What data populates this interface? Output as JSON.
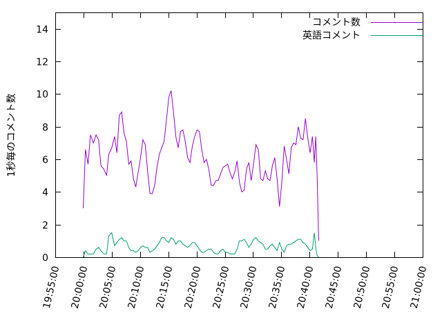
{
  "chart_data": {
    "type": "line",
    "title": "",
    "xlabel": "",
    "ylabel": "1秒毎のコメント数",
    "x_axis": "time",
    "x_ticks": [
      "19:55:00",
      "20:00:00",
      "20:05:00",
      "20:10:00",
      "20:15:00",
      "20:20:00",
      "20:25:00",
      "20:30:00",
      "20:35:00",
      "20:40:00",
      "20:45:00",
      "20:50:00",
      "20:55:00",
      "21:00:00"
    ],
    "y_ticks": [
      "0",
      "2",
      "4",
      "6",
      "8",
      "10",
      "12",
      "14"
    ],
    "xlim": [
      "19:55:00",
      "21:00:00"
    ],
    "ylim": [
      0,
      15
    ],
    "grid": false,
    "legend": "top-right",
    "series": [
      {
        "name": "コメント数",
        "color": "#9400d3",
        "points": [
          [
            "19:59:57",
            3.0
          ],
          [
            "20:00:20",
            6.6
          ],
          [
            "20:00:48",
            5.7
          ],
          [
            "20:01:14",
            7.5
          ],
          [
            "20:01:45",
            7.0
          ],
          [
            "20:02:13",
            7.5
          ],
          [
            "20:02:40",
            7.2
          ],
          [
            "20:03:05",
            5.6
          ],
          [
            "20:03:35",
            5.4
          ],
          [
            "20:04:05",
            5.0
          ],
          [
            "20:04:28",
            6.3
          ],
          [
            "20:05:00",
            6.7
          ],
          [
            "20:05:30",
            7.4
          ],
          [
            "20:05:55",
            6.4
          ],
          [
            "20:06:20",
            8.7
          ],
          [
            "20:06:45",
            8.9
          ],
          [
            "20:07:10",
            7.6
          ],
          [
            "20:07:35",
            7.1
          ],
          [
            "20:08:00",
            5.7
          ],
          [
            "20:08:25",
            5.9
          ],
          [
            "20:08:50",
            4.8
          ],
          [
            "20:09:15",
            4.3
          ],
          [
            "20:09:40",
            5.2
          ],
          [
            "20:10:05",
            6.1
          ],
          [
            "20:10:30",
            7.2
          ],
          [
            "20:10:55",
            6.9
          ],
          [
            "20:11:20",
            5.3
          ],
          [
            "20:11:45",
            3.9
          ],
          [
            "20:12:10",
            3.9
          ],
          [
            "20:12:35",
            4.4
          ],
          [
            "20:13:00",
            5.5
          ],
          [
            "20:13:25",
            6.3
          ],
          [
            "20:13:50",
            6.7
          ],
          [
            "20:14:15",
            7.1
          ],
          [
            "20:14:40",
            8.4
          ],
          [
            "20:15:05",
            9.8
          ],
          [
            "20:15:30",
            10.2
          ],
          [
            "20:15:55",
            8.9
          ],
          [
            "20:16:20",
            7.4
          ],
          [
            "20:16:45",
            6.7
          ],
          [
            "20:17:10",
            7.7
          ],
          [
            "20:17:35",
            7.8
          ],
          [
            "20:18:00",
            7.1
          ],
          [
            "20:18:25",
            6.1
          ],
          [
            "20:18:50",
            5.8
          ],
          [
            "20:19:15",
            6.8
          ],
          [
            "20:19:40",
            7.4
          ],
          [
            "20:20:05",
            7.8
          ],
          [
            "20:20:30",
            7.7
          ],
          [
            "20:20:55",
            6.6
          ],
          [
            "20:21:20",
            5.8
          ],
          [
            "20:21:45",
            6.0
          ],
          [
            "20:22:10",
            5.4
          ],
          [
            "20:22:35",
            4.4
          ],
          [
            "20:23:00",
            4.4
          ],
          [
            "20:23:25",
            4.7
          ],
          [
            "20:23:50",
            4.7
          ],
          [
            "20:24:15",
            5.1
          ],
          [
            "20:24:40",
            5.5
          ],
          [
            "20:25:05",
            5.6
          ],
          [
            "20:25:30",
            5.7
          ],
          [
            "20:25:55",
            5.2
          ],
          [
            "20:26:20",
            4.8
          ],
          [
            "20:26:45",
            5.2
          ],
          [
            "20:27:10",
            5.9
          ],
          [
            "20:27:35",
            4.6
          ],
          [
            "20:28:00",
            4.0
          ],
          [
            "20:28:25",
            4.1
          ],
          [
            "20:28:50",
            5.4
          ],
          [
            "20:29:15",
            5.8
          ],
          [
            "20:29:40",
            4.7
          ],
          [
            "20:30:05",
            5.7
          ],
          [
            "20:30:30",
            6.9
          ],
          [
            "20:30:55",
            6.6
          ],
          [
            "20:31:20",
            4.8
          ],
          [
            "20:31:45",
            4.7
          ],
          [
            "20:32:10",
            5.3
          ],
          [
            "20:32:35",
            4.8
          ],
          [
            "20:33:00",
            4.7
          ],
          [
            "20:33:25",
            5.6
          ],
          [
            "20:33:50",
            6.1
          ],
          [
            "20:34:15",
            4.8
          ],
          [
            "20:34:40",
            3.1
          ],
          [
            "20:35:05",
            4.6
          ],
          [
            "20:35:30",
            6.8
          ],
          [
            "20:35:55",
            6.0
          ],
          [
            "20:36:20",
            5.1
          ],
          [
            "20:36:45",
            6.7
          ],
          [
            "20:37:10",
            7.0
          ],
          [
            "20:37:35",
            6.9
          ],
          [
            "20:38:00",
            8.0
          ],
          [
            "20:38:25",
            7.3
          ],
          [
            "20:38:50",
            7.2
          ],
          [
            "20:39:15",
            8.5
          ],
          [
            "20:39:40",
            7.3
          ],
          [
            "20:40:05",
            6.4
          ],
          [
            "20:40:30",
            7.4
          ],
          [
            "20:40:50",
            5.8
          ],
          [
            "20:41:05",
            7.4
          ],
          [
            "20:41:20",
            5.0
          ],
          [
            "20:41:36",
            1.0
          ]
        ]
      },
      {
        "name": "英語コメント",
        "color": "#009e73",
        "points": [
          [
            "19:59:57",
            0.0
          ],
          [
            "20:00:20",
            0.4
          ],
          [
            "20:00:48",
            0.2
          ],
          [
            "20:01:14",
            0.2
          ],
          [
            "20:01:45",
            0.2
          ],
          [
            "20:02:13",
            0.5
          ],
          [
            "20:02:40",
            0.6
          ],
          [
            "20:03:05",
            0.4
          ],
          [
            "20:03:35",
            0.2
          ],
          [
            "20:04:05",
            0.2
          ],
          [
            "20:04:28",
            1.3
          ],
          [
            "20:05:00",
            1.5
          ],
          [
            "20:05:30",
            0.7
          ],
          [
            "20:05:55",
            0.9
          ],
          [
            "20:06:20",
            1.1
          ],
          [
            "20:06:45",
            1.2
          ],
          [
            "20:07:10",
            1.0
          ],
          [
            "20:07:35",
            1.0
          ],
          [
            "20:08:00",
            0.6
          ],
          [
            "20:08:25",
            0.4
          ],
          [
            "20:08:50",
            0.4
          ],
          [
            "20:09:15",
            0.3
          ],
          [
            "20:09:40",
            0.4
          ],
          [
            "20:10:05",
            0.6
          ],
          [
            "20:10:30",
            0.7
          ],
          [
            "20:10:55",
            0.6
          ],
          [
            "20:11:20",
            0.6
          ],
          [
            "20:11:45",
            0.3
          ],
          [
            "20:12:10",
            0.4
          ],
          [
            "20:12:35",
            0.5
          ],
          [
            "20:13:00",
            0.7
          ],
          [
            "20:13:25",
            0.9
          ],
          [
            "20:13:50",
            1.2
          ],
          [
            "20:14:15",
            1.2
          ],
          [
            "20:14:40",
            1.0
          ],
          [
            "20:15:05",
            0.9
          ],
          [
            "20:15:30",
            1.2
          ],
          [
            "20:15:55",
            1.1
          ],
          [
            "20:16:20",
            0.8
          ],
          [
            "20:16:45",
            1.0
          ],
          [
            "20:17:10",
            1.0
          ],
          [
            "20:17:35",
            0.8
          ],
          [
            "20:18:00",
            0.7
          ],
          [
            "20:18:25",
            0.6
          ],
          [
            "20:18:50",
            0.7
          ],
          [
            "20:19:15",
            0.9
          ],
          [
            "20:19:40",
            0.9
          ],
          [
            "20:20:05",
            0.7
          ],
          [
            "20:20:30",
            0.5
          ],
          [
            "20:20:55",
            0.3
          ],
          [
            "20:21:20",
            0.3
          ],
          [
            "20:21:45",
            0.4
          ],
          [
            "20:22:10",
            0.5
          ],
          [
            "20:22:35",
            0.5
          ],
          [
            "20:23:00",
            0.3
          ],
          [
            "20:23:25",
            0.2
          ],
          [
            "20:23:50",
            0.2
          ],
          [
            "20:24:15",
            0.4
          ],
          [
            "20:24:40",
            0.5
          ],
          [
            "20:25:05",
            0.3
          ],
          [
            "20:25:30",
            0.3
          ],
          [
            "20:25:55",
            0.2
          ],
          [
            "20:26:20",
            0.2
          ],
          [
            "20:26:45",
            0.2
          ],
          [
            "20:27:10",
            0.5
          ],
          [
            "20:27:35",
            1.0
          ],
          [
            "20:28:00",
            1.0
          ],
          [
            "20:28:25",
            1.1
          ],
          [
            "20:28:50",
            0.9
          ],
          [
            "20:29:15",
            0.6
          ],
          [
            "20:29:40",
            0.8
          ],
          [
            "20:30:05",
            1.1
          ],
          [
            "20:30:30",
            1.2
          ],
          [
            "20:30:55",
            1.0
          ],
          [
            "20:31:20",
            0.9
          ],
          [
            "20:31:45",
            0.8
          ],
          [
            "20:32:10",
            0.5
          ],
          [
            "20:32:35",
            0.5
          ],
          [
            "20:33:00",
            0.7
          ],
          [
            "20:33:25",
            0.8
          ],
          [
            "20:33:50",
            0.6
          ],
          [
            "20:34:15",
            0.4
          ],
          [
            "20:34:40",
            0.9
          ],
          [
            "20:35:05",
            0.5
          ],
          [
            "20:35:30",
            0.3
          ],
          [
            "20:35:55",
            0.7
          ],
          [
            "20:36:20",
            0.8
          ],
          [
            "20:36:45",
            0.8
          ],
          [
            "20:37:10",
            0.9
          ],
          [
            "20:37:35",
            1.0
          ],
          [
            "20:38:00",
            1.1
          ],
          [
            "20:38:25",
            1.1
          ],
          [
            "20:38:50",
            0.9
          ],
          [
            "20:39:15",
            0.8
          ],
          [
            "20:39:40",
            0.6
          ],
          [
            "20:40:05",
            0.4
          ],
          [
            "20:40:30",
            0.5
          ],
          [
            "20:40:50",
            1.5
          ],
          [
            "20:41:05",
            0.6
          ],
          [
            "20:41:20",
            0.1
          ],
          [
            "20:41:36",
            0.0
          ]
        ]
      }
    ]
  }
}
